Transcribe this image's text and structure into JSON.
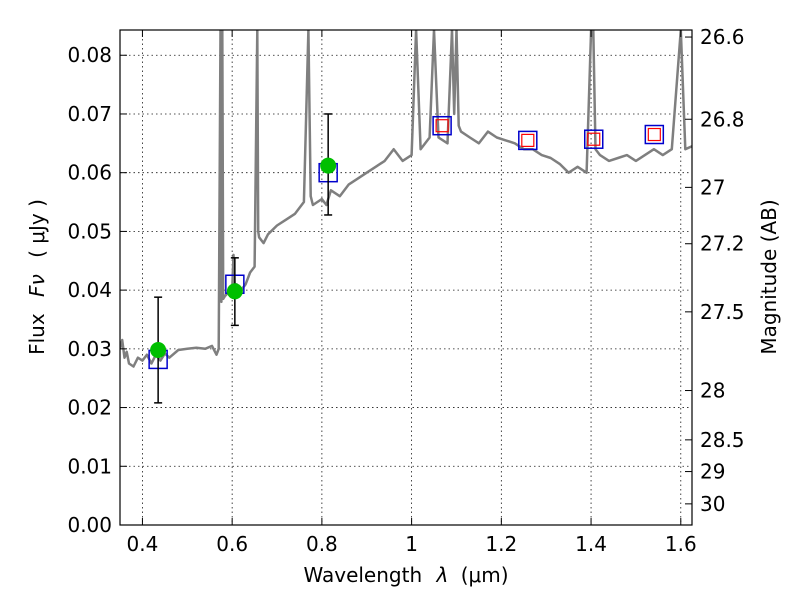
{
  "chart_data": {
    "type": "scatter",
    "title": "",
    "xlabel": "Wavelength",
    "xlabel_symbol": "λ",
    "xlabel_unit": "(μm)",
    "ylabel": "Flux",
    "ylabel_symbol": "Fν",
    "ylabel_unit": "( μJy )",
    "y2label": "Magnitude (AB)",
    "xlim": [
      0.35,
      1.625
    ],
    "ylim": [
      0.0,
      0.0843
    ],
    "grid": true,
    "x_ticks": [
      {
        "value": 0.4,
        "label": "0.4"
      },
      {
        "value": 0.6,
        "label": "0.6"
      },
      {
        "value": 0.8,
        "label": "0.8"
      },
      {
        "value": 1.0,
        "label": "1"
      },
      {
        "value": 1.2,
        "label": "1.2"
      },
      {
        "value": 1.4,
        "label": "1.4"
      },
      {
        "value": 1.6,
        "label": "1.6"
      }
    ],
    "y_ticks": [
      {
        "value": 0.0,
        "label": "0.00"
      },
      {
        "value": 0.01,
        "label": "0.01"
      },
      {
        "value": 0.02,
        "label": "0.02"
      },
      {
        "value": 0.03,
        "label": "0.03"
      },
      {
        "value": 0.04,
        "label": "0.04"
      },
      {
        "value": 0.05,
        "label": "0.05"
      },
      {
        "value": 0.06,
        "label": "0.06"
      },
      {
        "value": 0.07,
        "label": "0.07"
      },
      {
        "value": 0.08,
        "label": "0.08"
      }
    ],
    "y2_ticks": [
      {
        "mag": "26.6",
        "flux": 0.0831
      },
      {
        "mag": "26.8",
        "flux": 0.0691
      },
      {
        "mag": "27",
        "flux": 0.0575
      },
      {
        "mag": "27.2",
        "flux": 0.0479
      },
      {
        "mag": "27.5",
        "flux": 0.0363
      },
      {
        "mag": "28",
        "flux": 0.0229
      },
      {
        "mag": "28.5",
        "flux": 0.0145
      },
      {
        "mag": "29",
        "flux": 0.0091
      },
      {
        "mag": "30",
        "flux": 0.0036
      }
    ],
    "colors": {
      "spectrum": "#7f7f7f",
      "observed": "#00bf00",
      "model_outer": "#0000cc",
      "model_inner": "#ff0000",
      "errorbar": "#000000"
    },
    "series": [
      {
        "kind": "spectrum",
        "x": [
          0.35,
          0.355,
          0.36,
          0.365,
          0.37,
          0.38,
          0.39,
          0.4,
          0.41,
          0.42,
          0.43,
          0.44,
          0.45,
          0.46,
          0.48,
          0.5,
          0.52,
          0.54,
          0.555,
          0.565,
          0.57,
          0.574,
          0.576,
          0.578,
          0.58,
          0.584,
          0.59,
          0.595,
          0.6,
          0.603,
          0.606,
          0.61,
          0.615,
          0.62,
          0.63,
          0.64,
          0.65,
          0.656,
          0.658,
          0.66,
          0.67,
          0.68,
          0.7,
          0.72,
          0.74,
          0.76,
          0.77,
          0.775,
          0.78,
          0.79,
          0.8,
          0.81,
          0.82,
          0.84,
          0.86,
          0.88,
          0.9,
          0.92,
          0.94,
          0.96,
          0.98,
          1.0,
          1.01,
          1.02,
          1.04,
          1.05,
          1.06,
          1.08,
          1.09,
          1.095,
          1.1,
          1.105,
          1.11,
          1.13,
          1.15,
          1.17,
          1.19,
          1.21,
          1.23,
          1.25,
          1.27,
          1.29,
          1.31,
          1.33,
          1.35,
          1.37,
          1.39,
          1.4,
          1.405,
          1.41,
          1.42,
          1.44,
          1.46,
          1.48,
          1.5,
          1.52,
          1.54,
          1.56,
          1.58,
          1.6,
          1.61,
          1.625
        ],
        "y": [
          0.03,
          0.0315,
          0.0285,
          0.0295,
          0.0275,
          0.027,
          0.0285,
          0.028,
          0.029,
          0.0275,
          0.029,
          0.028,
          0.0292,
          0.0285,
          0.0298,
          0.03,
          0.0302,
          0.03,
          0.0305,
          0.029,
          0.03,
          0.0843,
          0.038,
          0.0843,
          0.0385,
          0.039,
          0.0395,
          0.0395,
          0.04,
          0.046,
          0.04,
          0.041,
          0.0405,
          0.04,
          0.041,
          0.043,
          0.044,
          0.0843,
          0.05,
          0.049,
          0.048,
          0.0495,
          0.051,
          0.052,
          0.053,
          0.055,
          0.0843,
          0.056,
          0.0545,
          0.055,
          0.0555,
          0.0545,
          0.057,
          0.056,
          0.058,
          0.059,
          0.06,
          0.061,
          0.062,
          0.064,
          0.062,
          0.063,
          0.0843,
          0.064,
          0.066,
          0.0843,
          0.066,
          0.065,
          0.0843,
          0.07,
          0.0843,
          0.068,
          0.067,
          0.066,
          0.065,
          0.067,
          0.066,
          0.0655,
          0.065,
          0.064,
          0.064,
          0.063,
          0.0625,
          0.0615,
          0.06,
          0.061,
          0.06,
          0.0843,
          0.0843,
          0.064,
          0.063,
          0.062,
          0.0625,
          0.063,
          0.062,
          0.063,
          0.064,
          0.063,
          0.064,
          0.0843,
          0.064,
          0.0645
        ]
      },
      {
        "kind": "model_photometry",
        "x": [
          0.435,
          0.606,
          0.814,
          1.068,
          1.259,
          1.406,
          1.541
        ],
        "y": [
          0.0282,
          0.041,
          0.06,
          0.068,
          0.0655,
          0.0657,
          0.0665
        ]
      },
      {
        "kind": "observed_photometry",
        "x": [
          0.435,
          0.606,
          0.814
        ],
        "y": [
          0.0298,
          0.0398,
          0.0612
        ],
        "yerr_low": [
          0.0208,
          0.034,
          0.0528
        ],
        "yerr_high": [
          0.0388,
          0.0455,
          0.07
        ]
      }
    ]
  }
}
